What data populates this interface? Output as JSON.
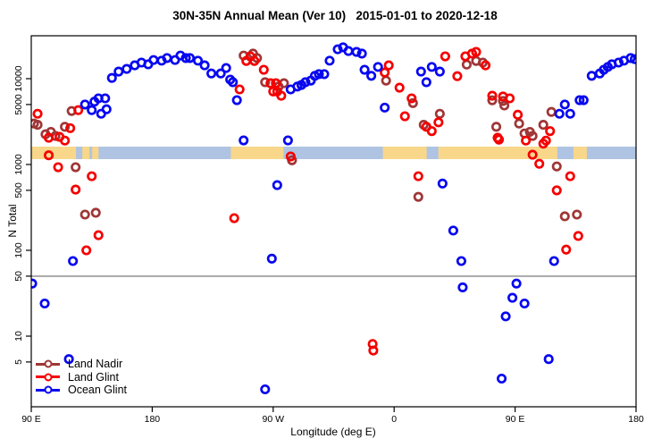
{
  "title": "30N-35N Annual Mean (Ver 10)   2015-01-01 to 2020-12-18",
  "chart_data": {
    "type": "scatter",
    "title": "30N-35N Annual Mean (Ver 10)   2015-01-01 to 2020-12-18",
    "xlabel": "Longitude (deg E)",
    "ylabel": "N Total",
    "x_axis": {
      "note": "axis spans 450 degrees of longitude starting at 90E going east",
      "range_deg": [
        0,
        450
      ],
      "ticks": [
        {
          "pos": 0,
          "label": "90 E"
        },
        {
          "pos": 90,
          "label": "180"
        },
        {
          "pos": 180,
          "label": "90 W"
        },
        {
          "pos": 270,
          "label": "0"
        },
        {
          "pos": 360,
          "label": "90 E"
        },
        {
          "pos": 450,
          "label": "180"
        }
      ]
    },
    "y_axis": {
      "scale": "log",
      "range": [
        1.5,
        30000
      ],
      "tick_values": [
        5,
        10,
        50,
        100,
        500,
        1000,
        5000,
        10000
      ],
      "tick_labels": [
        "5",
        "10",
        "50",
        "100",
        "500",
        "1000",
        "5000",
        "10000"
      ]
    },
    "grid": false,
    "legend_position": "bottom-left",
    "reference_line": {
      "value": 50,
      "color": "#858585"
    },
    "map_band": {
      "top_value": 1615,
      "bottom_value": 1155,
      "ocean_color": "#AFC3E3",
      "land_color": "#F8D78A",
      "land_segments_deg": [
        [
          0,
          33.3
        ],
        [
          38,
          43.3
        ],
        [
          45.3,
          50
        ],
        [
          148.5,
          187.7
        ],
        [
          261.6,
          294.2
        ],
        [
          302.9,
          391.4
        ],
        [
          403.4,
          413.4
        ]
      ]
    },
    "marker": {
      "shape": "open-circle",
      "radius": 4.2,
      "stroke_width": 2.7
    },
    "series": [
      {
        "name": "Land Nadir",
        "color": "#A03636",
        "points": [
          [
            2,
            3000
          ],
          [
            4.7,
            2900
          ],
          [
            10.6,
            2250
          ],
          [
            14.6,
            2400
          ],
          [
            18,
            2150
          ],
          [
            25,
            2750
          ],
          [
            30,
            4200
          ],
          [
            33,
            930
          ],
          [
            40,
            261
          ],
          [
            48,
            274
          ],
          [
            158,
            18600
          ],
          [
            165,
            19600
          ],
          [
            168,
            17400
          ],
          [
            174,
            9100
          ],
          [
            184,
            8100
          ],
          [
            188,
            8850
          ],
          [
            194,
            1120
          ],
          [
            264,
            9500
          ],
          [
            284,
            5200
          ],
          [
            288,
            420
          ],
          [
            292,
            2900
          ],
          [
            304,
            3900
          ],
          [
            324,
            14600
          ],
          [
            331,
            16100
          ],
          [
            336,
            15400
          ],
          [
            343,
            5600
          ],
          [
            346,
            2750
          ],
          [
            351,
            5500
          ],
          [
            352,
            4870
          ],
          [
            363,
            3000
          ],
          [
            367,
            2300
          ],
          [
            371,
            2400
          ],
          [
            373,
            2150
          ],
          [
            381,
            2900
          ],
          [
            387,
            4100
          ],
          [
            391,
            950
          ],
          [
            397,
            249
          ],
          [
            406,
            261
          ]
        ]
      },
      {
        "name": "Land Glint",
        "color": "#F50000",
        "points": [
          [
            4.7,
            3900
          ],
          [
            13,
            2050
          ],
          [
            13,
            1280
          ],
          [
            20,
            930
          ],
          [
            21,
            2100
          ],
          [
            25,
            1900
          ],
          [
            29,
            2650
          ],
          [
            33,
            510
          ],
          [
            35,
            4300
          ],
          [
            41,
            100
          ],
          [
            45,
            730
          ],
          [
            50,
            150
          ],
          [
            151,
            237
          ],
          [
            155,
            7500
          ],
          [
            160,
            16100
          ],
          [
            163,
            18200
          ],
          [
            166,
            16100
          ],
          [
            173,
            12700
          ],
          [
            178,
            8850
          ],
          [
            180,
            7100
          ],
          [
            182,
            8850
          ],
          [
            183,
            7100
          ],
          [
            186,
            6330
          ],
          [
            193,
            1240
          ],
          [
            254,
            8.1
          ],
          [
            254.5,
            6.8
          ],
          [
            263,
            11800
          ],
          [
            266,
            14300
          ],
          [
            274,
            7860
          ],
          [
            278,
            3650
          ],
          [
            283,
            5900
          ],
          [
            288,
            730
          ],
          [
            294,
            2750
          ],
          [
            298,
            2450
          ],
          [
            303,
            3100
          ],
          [
            308,
            18200
          ],
          [
            317,
            10700
          ],
          [
            323,
            18200
          ],
          [
            328,
            19600
          ],
          [
            331,
            20500
          ],
          [
            338,
            14300
          ],
          [
            343,
            6330
          ],
          [
            347,
            2050
          ],
          [
            348,
            1950
          ],
          [
            351,
            6200
          ],
          [
            356,
            5900
          ],
          [
            362,
            3800
          ],
          [
            368,
            1900
          ],
          [
            373,
            1300
          ],
          [
            378,
            1020
          ],
          [
            381,
            1750
          ],
          [
            383,
            1900
          ],
          [
            386,
            2450
          ],
          [
            391,
            500
          ],
          [
            398,
            102
          ],
          [
            401,
            730
          ],
          [
            407,
            147
          ]
        ]
      },
      {
        "name": "Ocean Glint",
        "color": "#0707F0",
        "points": [
          [
            0.7,
            41
          ],
          [
            10,
            24
          ],
          [
            28,
            5.4
          ],
          [
            31,
            75
          ],
          [
            40,
            5000
          ],
          [
            45,
            4300
          ],
          [
            47,
            5400
          ],
          [
            50,
            5900
          ],
          [
            52,
            3900
          ],
          [
            55,
            5900
          ],
          [
            56,
            4400
          ],
          [
            60,
            10200
          ],
          [
            65,
            12100
          ],
          [
            71,
            13000
          ],
          [
            77,
            14300
          ],
          [
            82,
            15400
          ],
          [
            87,
            14700
          ],
          [
            91,
            16500
          ],
          [
            97,
            16200
          ],
          [
            101,
            17400
          ],
          [
            107,
            16500
          ],
          [
            111,
            18600
          ],
          [
            115,
            17400
          ],
          [
            118,
            17400
          ],
          [
            124,
            16200
          ],
          [
            129,
            14300
          ],
          [
            134,
            11500
          ],
          [
            141,
            11500
          ],
          [
            145,
            13300
          ],
          [
            148,
            9760
          ],
          [
            150,
            9100
          ],
          [
            153,
            5620
          ],
          [
            158,
            1910
          ],
          [
            174,
            2.4
          ],
          [
            179,
            80
          ],
          [
            183,
            575
          ],
          [
            191,
            1910
          ],
          [
            193,
            7500
          ],
          [
            198,
            8100
          ],
          [
            201,
            8450
          ],
          [
            204,
            9100
          ],
          [
            208,
            9500
          ],
          [
            211,
            10800
          ],
          [
            214,
            11300
          ],
          [
            218,
            11300
          ],
          [
            222,
            16200
          ],
          [
            228,
            22000
          ],
          [
            232,
            23200
          ],
          [
            236,
            21000
          ],
          [
            242,
            20500
          ],
          [
            246,
            19600
          ],
          [
            248,
            12700
          ],
          [
            253,
            10800
          ],
          [
            258,
            13700
          ],
          [
            263,
            4600
          ],
          [
            290,
            12100
          ],
          [
            294,
            9100
          ],
          [
            298,
            13700
          ],
          [
            304,
            12100
          ],
          [
            306,
            600
          ],
          [
            314,
            170
          ],
          [
            320,
            75
          ],
          [
            321,
            37
          ],
          [
            350,
            3.2
          ],
          [
            353,
            17
          ],
          [
            358,
            28
          ],
          [
            361,
            41
          ],
          [
            367,
            24
          ],
          [
            385,
            5.4
          ],
          [
            389,
            75
          ],
          [
            393,
            3900
          ],
          [
            397,
            5000
          ],
          [
            401,
            3900
          ],
          [
            408,
            5620
          ],
          [
            411,
            5620
          ],
          [
            417,
            10800
          ],
          [
            423,
            11500
          ],
          [
            426,
            12700
          ],
          [
            429,
            13700
          ],
          [
            432,
            14700
          ],
          [
            437,
            15400
          ],
          [
            441,
            16200
          ],
          [
            446,
            17400
          ],
          [
            449,
            16900
          ]
        ]
      }
    ]
  },
  "legend": {
    "items": [
      {
        "label": "Land Nadir"
      },
      {
        "label": "Land Glint"
      },
      {
        "label": "Ocean Glint"
      }
    ]
  }
}
